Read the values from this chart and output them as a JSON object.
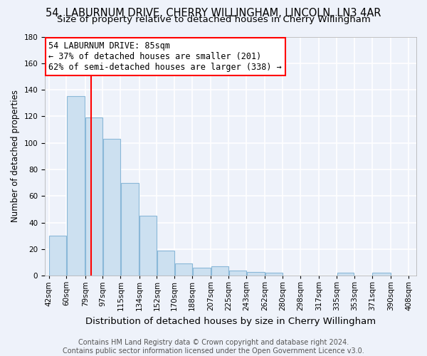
{
  "title": "54, LABURNUM DRIVE, CHERRY WILLINGHAM, LINCOLN, LN3 4AR",
  "subtitle": "Size of property relative to detached houses in Cherry Willingham",
  "xlabel": "Distribution of detached houses by size in Cherry Willingham",
  "ylabel": "Number of detached properties",
  "bar_edges": [
    42,
    60,
    79,
    97,
    115,
    134,
    152,
    170,
    188,
    207,
    225,
    243,
    262,
    280,
    298,
    317,
    335,
    353,
    371,
    390,
    408
  ],
  "bar_heights": [
    30,
    135,
    119,
    103,
    70,
    45,
    19,
    9,
    6,
    7,
    4,
    3,
    2,
    0,
    0,
    0,
    2,
    0,
    2,
    0,
    0
  ],
  "bar_labels": [
    "42sqm",
    "60sqm",
    "79sqm",
    "97sqm",
    "115sqm",
    "134sqm",
    "152sqm",
    "170sqm",
    "188sqm",
    "207sqm",
    "225sqm",
    "243sqm",
    "262sqm",
    "280sqm",
    "298sqm",
    "317sqm",
    "335sqm",
    "353sqm",
    "371sqm",
    "390sqm",
    "408sqm"
  ],
  "bar_color": "#cce0f0",
  "bar_edge_color": "#8ab8d8",
  "vline_x": 85,
  "vline_color": "red",
  "ylim": [
    0,
    180
  ],
  "yticks": [
    0,
    20,
    40,
    60,
    80,
    100,
    120,
    140,
    160,
    180
  ],
  "annotation_title": "54 LABURNUM DRIVE: 85sqm",
  "annotation_line1": "← 37% of detached houses are smaller (201)",
  "annotation_line2": "62% of semi-detached houses are larger (338) →",
  "footer1": "Contains HM Land Registry data © Crown copyright and database right 2024.",
  "footer2": "Contains public sector information licensed under the Open Government Licence v3.0.",
  "background_color": "#eef2fa",
  "grid_color": "white",
  "title_fontsize": 10.5,
  "subtitle_fontsize": 9.5,
  "xlabel_fontsize": 9.5,
  "ylabel_fontsize": 8.5,
  "tick_fontsize": 7.5,
  "annotation_fontsize": 8.5,
  "footer_fontsize": 7.0
}
